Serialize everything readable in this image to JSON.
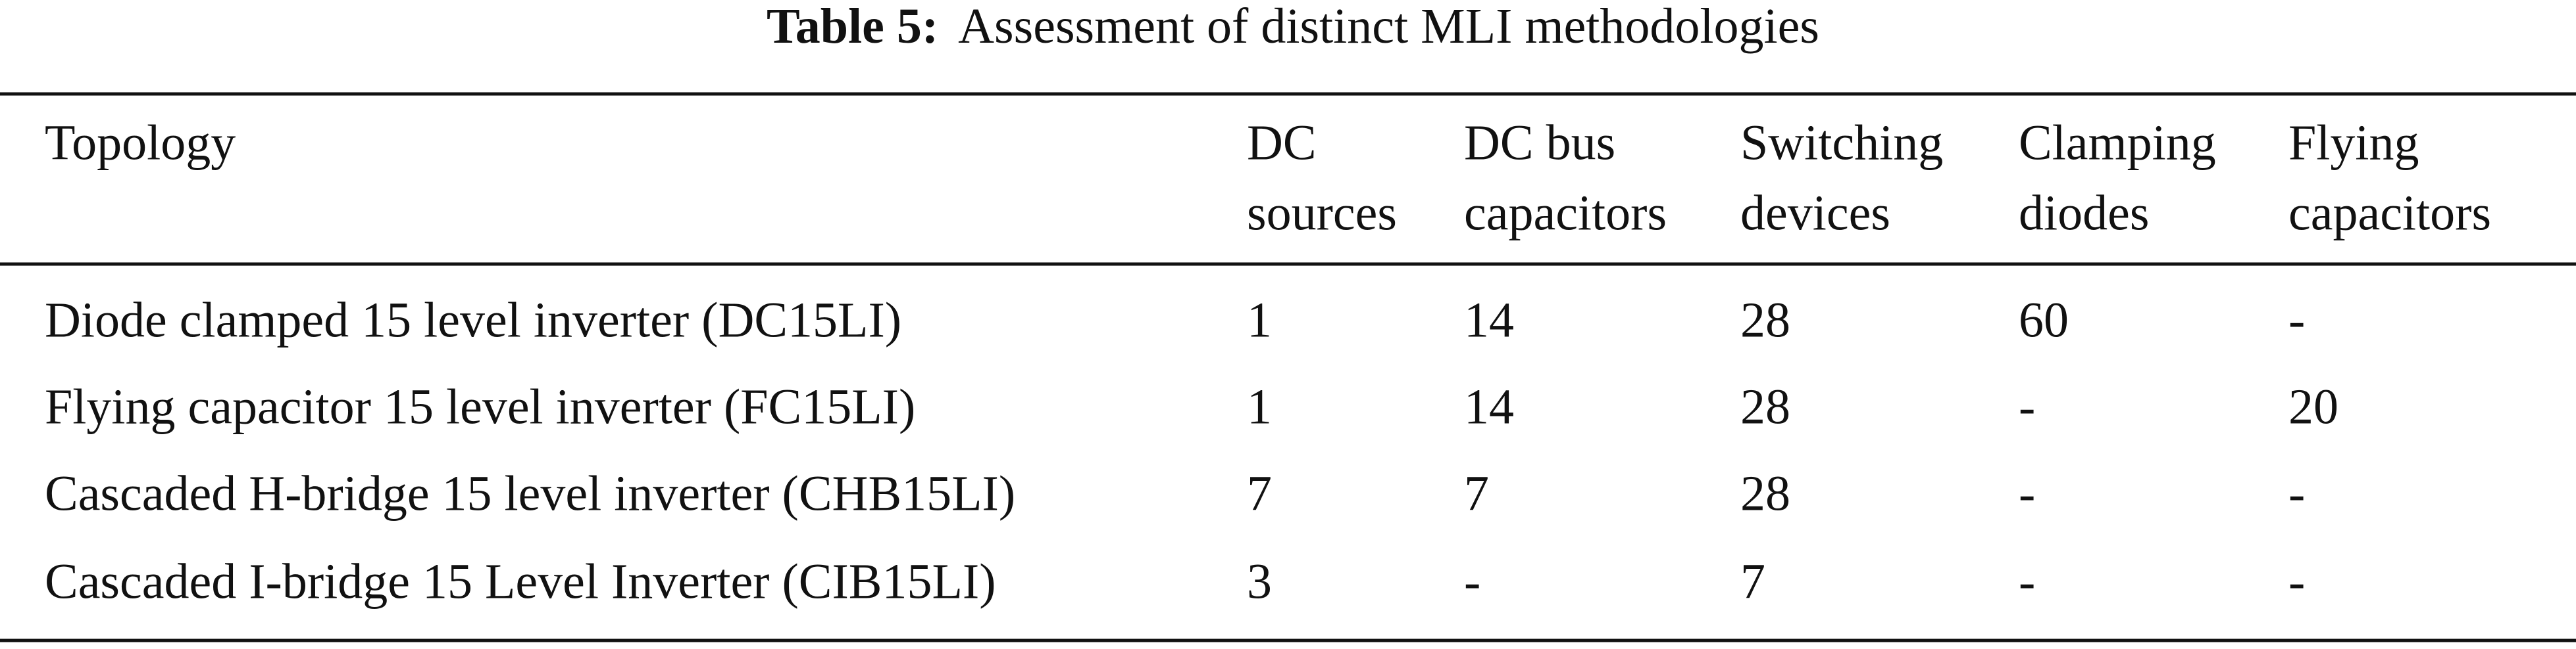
{
  "table": {
    "caption_label": "Table 5:",
    "caption": "Assessment of distinct MLI methodologies",
    "header": [
      [
        "Topology"
      ],
      [
        "DC",
        "sources"
      ],
      [
        "DC bus",
        "capacitors"
      ],
      [
        "Switching",
        "devices"
      ],
      [
        "Clamping",
        "diodes"
      ],
      [
        "Flying",
        "capacitors"
      ]
    ],
    "rows": [
      [
        "Diode clamped 15 level inverter (DC15LI)",
        1,
        14,
        28,
        60,
        "-"
      ],
      [
        "Flying capacitor 15 level inverter (FC15LI)",
        1,
        14,
        28,
        "-",
        20
      ],
      [
        "Cascaded H-bridge 15 level inverter (CHB15LI)",
        7,
        7,
        28,
        "-",
        "-"
      ],
      [
        "Cascaded I-bridge 15 Level Inverter (CIB15LI)",
        3,
        "-",
        7,
        "-",
        "-"
      ]
    ]
  }
}
